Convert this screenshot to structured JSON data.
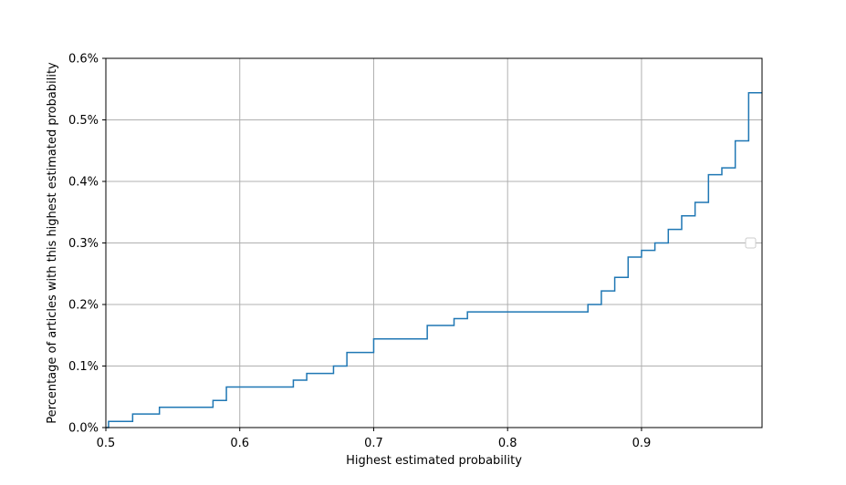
{
  "chart_data": {
    "type": "line",
    "step": true,
    "xlabel": "Highest estimated probability",
    "ylabel": "Percentage of articles with this highest estimated probability",
    "xlim": [
      0.5,
      0.99
    ],
    "ylim": [
      0.0,
      0.6
    ],
    "xticks": [
      0.5,
      0.6,
      0.7,
      0.8,
      0.9
    ],
    "xtick_labels": [
      "0.5",
      "0.6",
      "0.7",
      "0.8",
      "0.9"
    ],
    "yticks": [
      0.0,
      0.1,
      0.2,
      0.3,
      0.4,
      0.5,
      0.6
    ],
    "ytick_labels": [
      "0.0%",
      "0.1%",
      "0.2%",
      "0.3%",
      "0.4%",
      "0.5%",
      "0.6%"
    ],
    "grid": true,
    "legend": "empty, right",
    "series": [
      {
        "color": "#1f77b4",
        "x": [
          0.5,
          0.502,
          0.52,
          0.54,
          0.58,
          0.59,
          0.64,
          0.65,
          0.67,
          0.68,
          0.7,
          0.74,
          0.76,
          0.77,
          0.86,
          0.87,
          0.88,
          0.89,
          0.9,
          0.91,
          0.92,
          0.93,
          0.94,
          0.95,
          0.96,
          0.97,
          0.98,
          0.99
        ],
        "y": [
          0.0,
          0.01,
          0.022,
          0.033,
          0.044,
          0.066,
          0.077,
          0.088,
          0.1,
          0.122,
          0.144,
          0.166,
          0.177,
          0.188,
          0.2,
          0.222,
          0.244,
          0.277,
          0.288,
          0.3,
          0.322,
          0.344,
          0.366,
          0.411,
          0.422,
          0.466,
          0.544,
          0.544
        ]
      }
    ]
  }
}
